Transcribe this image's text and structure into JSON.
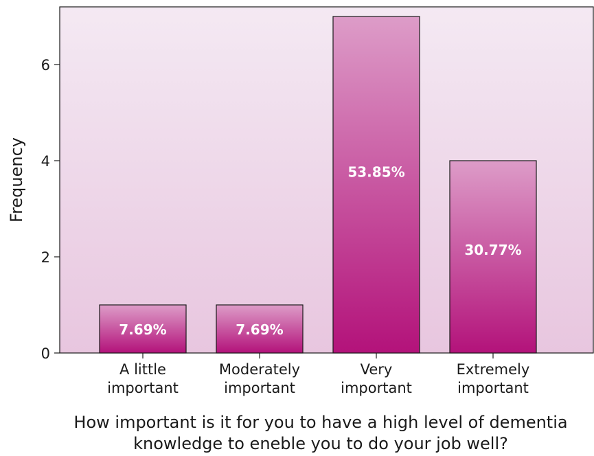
{
  "chart_data": {
    "type": "bar",
    "categories": [
      [
        "A little",
        "important"
      ],
      [
        "Moderately",
        "important"
      ],
      [
        "Very",
        "important"
      ],
      [
        "Extremely",
        "important"
      ]
    ],
    "values": [
      1,
      1,
      7,
      4
    ],
    "data_labels": [
      "7.69%",
      "7.69%",
      "53.85%",
      "30.77%"
    ],
    "ylabel": "Frequency",
    "xlabel": [
      "How important is it for you to have a high level of dementia",
      "knowledge to eneble you to do your job well?"
    ],
    "y_ticks": [
      0,
      2,
      4,
      6
    ],
    "ylim": [
      0,
      7.2
    ],
    "grid": false,
    "colors": {
      "plot_bg_top": "#f4e9f3",
      "plot_bg_bottom": "#e8c6df",
      "bar_top": "#dd9cc8",
      "bar_bottom": "#b3127a",
      "bar_stroke": "#1a1a1a"
    }
  }
}
